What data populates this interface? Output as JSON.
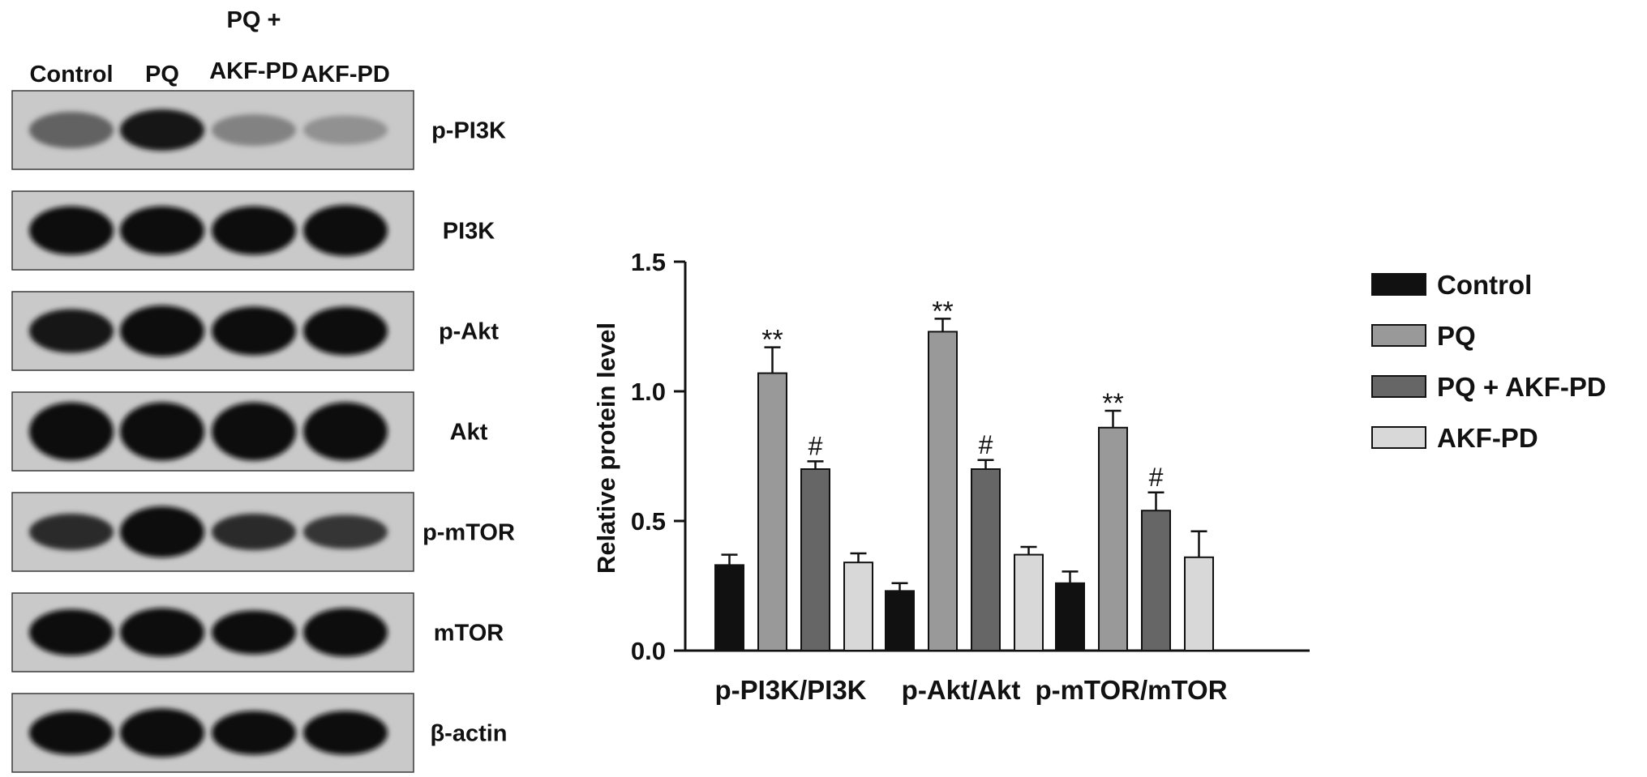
{
  "blot": {
    "top_label": "PQ +",
    "lanes": [
      "Control",
      "PQ",
      "AKF-PD",
      "AKF-PD"
    ],
    "rows": [
      {
        "label": "p-PI3K",
        "intensity": [
          0.55,
          0.95,
          0.38,
          0.3
        ],
        "thickness": [
          0.55,
          0.65,
          0.45,
          0.4
        ]
      },
      {
        "label": "PI3K",
        "intensity": [
          1.0,
          1.0,
          1.0,
          1.0
        ],
        "thickness": [
          0.8,
          0.8,
          0.8,
          0.85
        ]
      },
      {
        "label": "p-Akt",
        "intensity": [
          0.95,
          1.0,
          1.0,
          1.0
        ],
        "thickness": [
          0.7,
          0.85,
          0.8,
          0.8
        ]
      },
      {
        "label": "Akt",
        "intensity": [
          1.0,
          1.0,
          1.0,
          1.0
        ],
        "thickness": [
          1.0,
          1.0,
          1.0,
          1.0
        ]
      },
      {
        "label": "p-mTOR",
        "intensity": [
          0.85,
          1.0,
          0.85,
          0.8
        ],
        "thickness": [
          0.55,
          0.85,
          0.55,
          0.5
        ]
      },
      {
        "label": "mTOR",
        "intensity": [
          1.0,
          1.0,
          1.0,
          1.0
        ],
        "thickness": [
          0.75,
          0.8,
          0.7,
          0.8
        ]
      },
      {
        "label": "β-actin",
        "intensity": [
          1.0,
          1.0,
          1.0,
          1.0
        ],
        "thickness": [
          0.7,
          0.8,
          0.7,
          0.7
        ]
      }
    ]
  },
  "chart_data": {
    "type": "bar",
    "ylabel": "Relative protein level",
    "ylim": [
      0,
      1.5
    ],
    "yticks": [
      0.0,
      0.5,
      1.0,
      1.5
    ],
    "ytick_labels": [
      "0.0",
      "0.5",
      "1.0",
      "1.5"
    ],
    "categories": [
      "p-PI3K/PI3K",
      "p-Akt/Akt",
      "p-mTOR/mTOR"
    ],
    "series": [
      {
        "name": "Control",
        "color": "#111111",
        "values": [
          0.33,
          0.23,
          0.26
        ],
        "errors": [
          0.04,
          0.03,
          0.045
        ],
        "annotations": [
          "",
          "",
          ""
        ]
      },
      {
        "name": "PQ",
        "color": "#999999",
        "values": [
          1.07,
          1.23,
          0.86
        ],
        "errors": [
          0.1,
          0.05,
          0.065
        ],
        "annotations": [
          "**",
          "**",
          "**"
        ]
      },
      {
        "name": "PQ + AKF-PD",
        "color": "#666666",
        "values": [
          0.7,
          0.7,
          0.54
        ],
        "errors": [
          0.03,
          0.035,
          0.07
        ],
        "annotations": [
          "#",
          "#",
          "#"
        ]
      },
      {
        "name": "AKF-PD",
        "color": "#d8d8d8",
        "values": [
          0.34,
          0.37,
          0.36
        ],
        "errors": [
          0.035,
          0.03,
          0.1
        ],
        "annotations": [
          "",
          "",
          ""
        ]
      }
    ],
    "legend_position": "right"
  }
}
